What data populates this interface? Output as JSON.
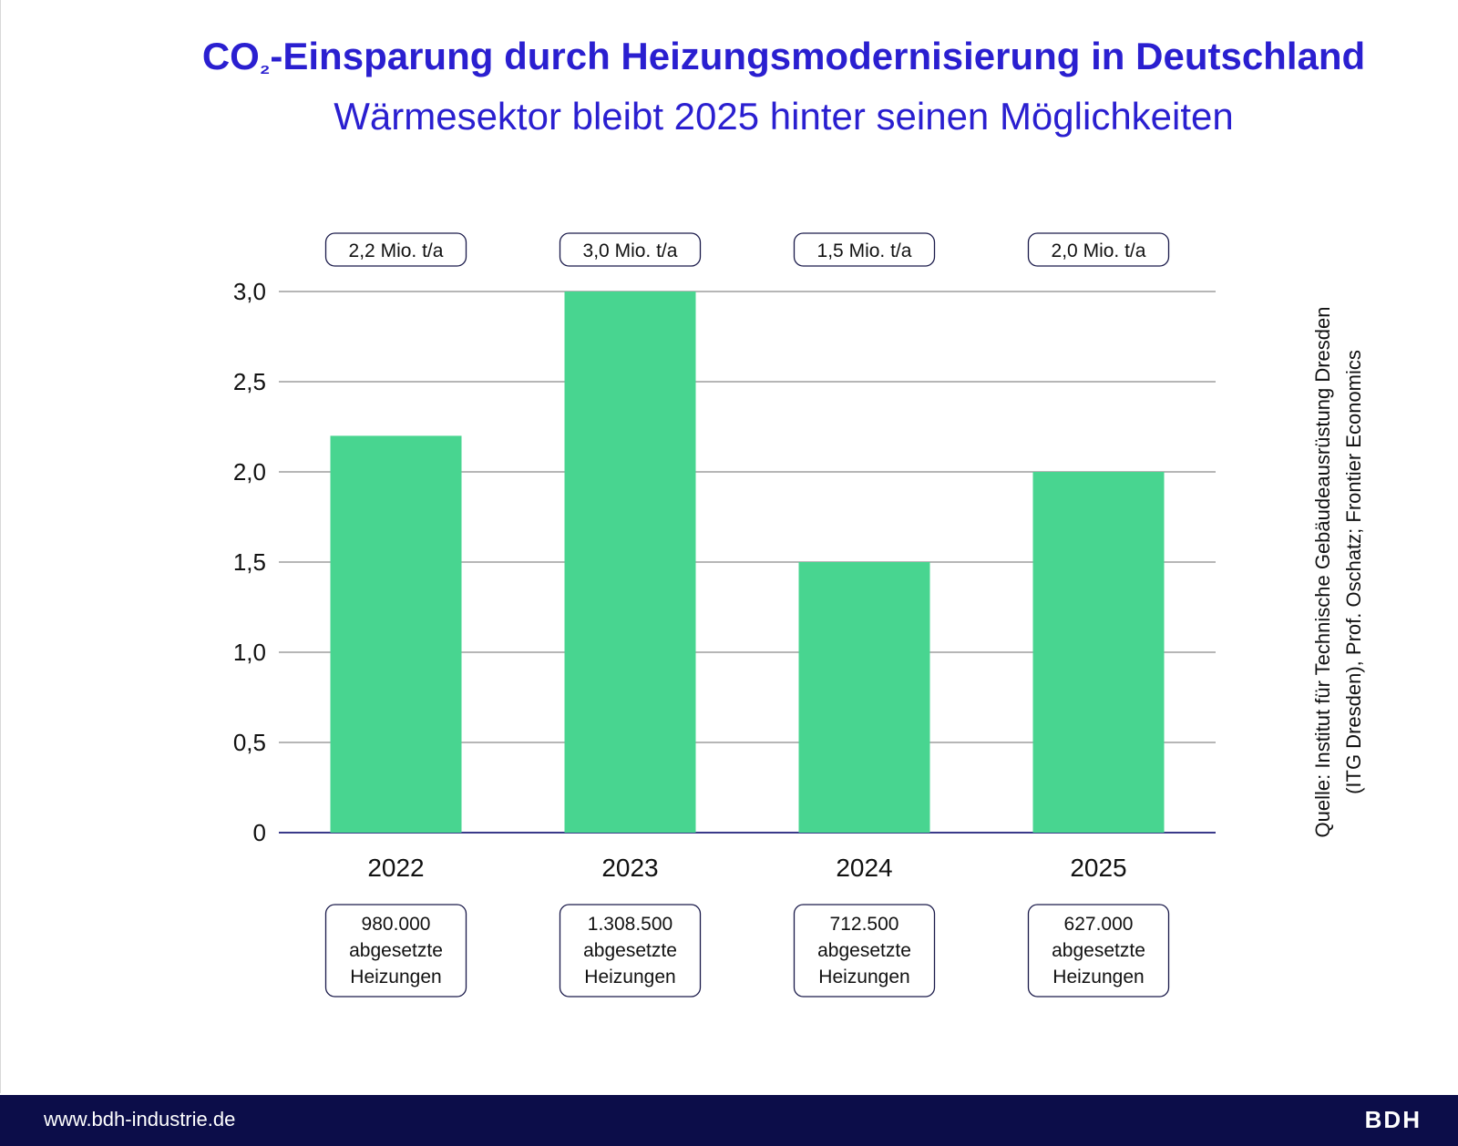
{
  "header": {
    "title_prefix": "CO",
    "title_subscript": "₂",
    "title_suffix": "-Einsparung durch Heizungsmodernisierung in Deutschland",
    "subtitle": "Wärmesektor bleibt 2025 hinter seinen Möglichkeiten"
  },
  "source": {
    "line1": "Quelle: Institut für Technische Gebäudeausrüstung Dresden",
    "line2": "(ITG Dresden), Prof. Oschatz; Frontier Economics"
  },
  "footer": {
    "url": "www.bdh-industrie.de",
    "logo": "BDH"
  },
  "chart_data": {
    "type": "bar",
    "title": "CO₂-Einsparung durch Heizungsmodernisierung in Deutschland",
    "subtitle": "Wärmesektor bleibt 2025 hinter seinen Möglichkeiten",
    "categories": [
      "2022",
      "2023",
      "2024",
      "2025"
    ],
    "values": [
      2.2,
      3.0,
      1.5,
      2.0
    ],
    "value_labels": [
      "2,2 Mio. t/a",
      "3,0 Mio. t/a",
      "1,5 Mio. t/a",
      "2,0 Mio. t/a"
    ],
    "sales_numbers": [
      "980.000",
      "1.308.500",
      "712.500",
      "627.000"
    ],
    "sales_label_line1": "abgesetzte",
    "sales_label_line2": "Heizungen",
    "ylim": [
      0,
      3.0
    ],
    "yticks": [
      0,
      0.5,
      1.0,
      1.5,
      2.0,
      2.5,
      3.0
    ],
    "ytick_labels": [
      "0",
      "0,5",
      "1,0",
      "1,5",
      "2,0",
      "2,5",
      "3,0"
    ],
    "xlabel": "",
    "ylabel": "",
    "grid": true,
    "bar_color": "#48d590",
    "axis_color": "#3a3a8a",
    "grid_color": "#8a8a8a",
    "box_border_color": "#1a1a4a"
  }
}
